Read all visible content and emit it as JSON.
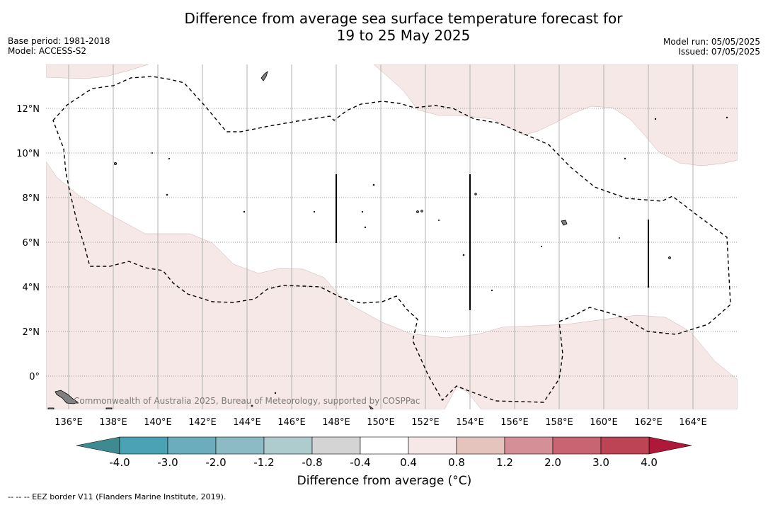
{
  "title_line1": "Difference from average sea surface temperature forecast for",
  "title_line2": "19 to 25 May 2025",
  "meta_left": {
    "base_period": "Base period: 1981-2018",
    "model": "Model: ACCESS-S2"
  },
  "meta_right": {
    "model_run": "Model run: 05/05/2025",
    "issued": "Issued: 07/05/2025"
  },
  "map": {
    "lon_labels": [
      "136°E",
      "138°E",
      "140°E",
      "142°E",
      "144°E",
      "146°E",
      "148°E",
      "150°E",
      "152°E",
      "154°E",
      "156°E",
      "158°E",
      "160°E",
      "162°E",
      "164°E"
    ],
    "lat_labels": [
      "12°N",
      "10°N",
      "8°N",
      "6°N",
      "4°N",
      "2°N",
      "0°"
    ],
    "copyright": "Commonwealth of Australia 2025, Bureau of Meteorology, supported by COSPPac",
    "warm_anomaly_color": "#f5e8e6",
    "land_color": "#808080",
    "eez_style": "dashed"
  },
  "colorbar": {
    "title": "Difference from average (°C)",
    "ticks": [
      "-4.0",
      "-3.0",
      "-2.0",
      "-1.2",
      "-0.8",
      "-0.4",
      "0.4",
      "0.8",
      "1.2",
      "2.0",
      "3.0",
      "4.0"
    ],
    "below_color": "#3d8a91",
    "above_color": "#b0183a",
    "colors": [
      "#4aa3b5",
      "#6badbc",
      "#8cbbc5",
      "#aecbce",
      "#d4d4d4",
      "#ffffff",
      "#f5e8e6",
      "#e6c4be",
      "#d58f96",
      "#c86570",
      "#bd4454"
    ]
  },
  "footnote": "--  --  -- EEZ border V11 (Flanders Marine Institute, 2019)."
}
